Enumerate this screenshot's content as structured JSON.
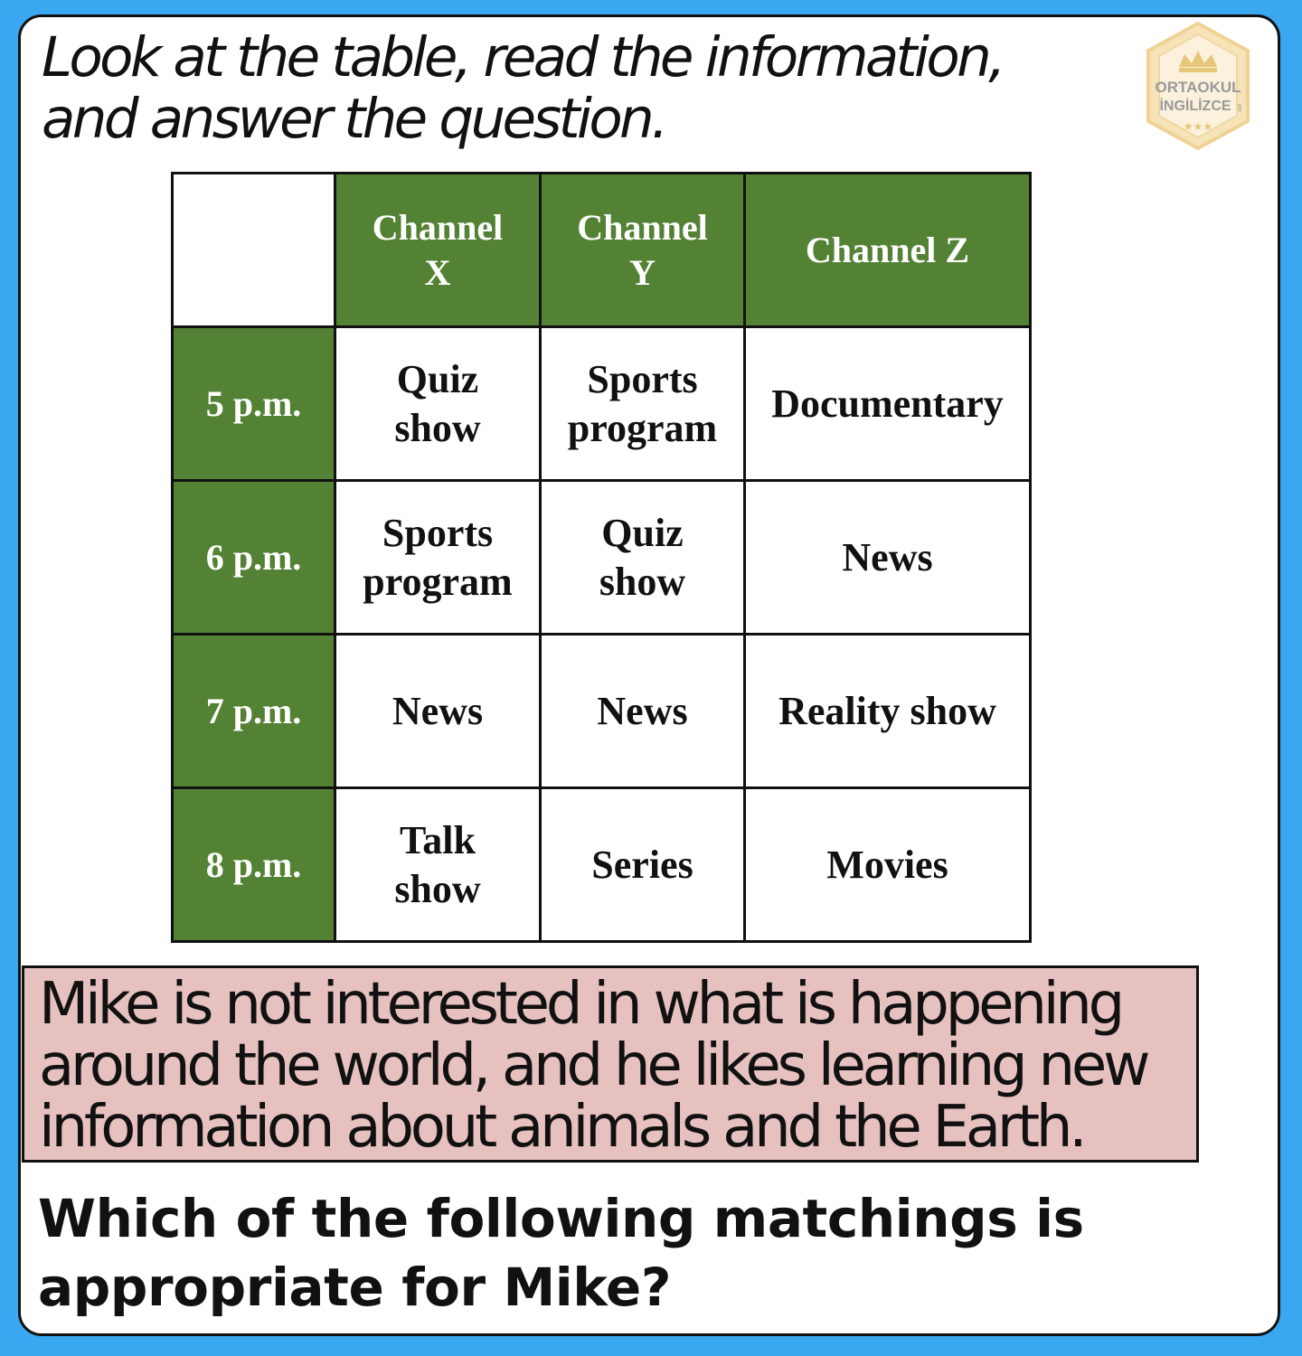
{
  "instruction": {
    "line1": "Look at the table, read the information,",
    "line2": "and answer the question."
  },
  "logo": {
    "line1": "ORTAOKUL",
    "line2": "İNGİLİZCE",
    "mark": ".net",
    "stars": "★★★"
  },
  "table": {
    "header": [
      "",
      "Channel X",
      "Channel Y",
      "Channel Z"
    ],
    "header_lines": [
      [
        "",
        ""
      ],
      [
        "Channel",
        "X"
      ],
      [
        "Channel",
        "Y"
      ],
      [
        "Channel Z",
        ""
      ]
    ],
    "rows": [
      {
        "time": "5 p.m.",
        "cells": [
          [
            "Quiz",
            "show"
          ],
          [
            "Sports",
            "program"
          ],
          [
            "Documentary",
            ""
          ]
        ]
      },
      {
        "time": "6 p.m.",
        "cells": [
          [
            "Sports",
            "program"
          ],
          [
            "Quiz",
            "show"
          ],
          [
            "News",
            ""
          ]
        ]
      },
      {
        "time": "7 p.m.",
        "cells": [
          [
            "News",
            ""
          ],
          [
            "News",
            ""
          ],
          [
            "Reality show",
            ""
          ]
        ]
      },
      {
        "time": "8 p.m.",
        "cells": [
          [
            "Talk",
            "show"
          ],
          [
            "Series",
            ""
          ],
          [
            "Movies",
            ""
          ]
        ]
      }
    ]
  },
  "info": {
    "line1": "Mike is not interested in what is happening",
    "line2": "around the world, and he likes learning new",
    "line3": "information about animals and the Earth."
  },
  "question": {
    "line1": "Which of the following matchings is",
    "line2": "appropriate for Mike?"
  },
  "colors": {
    "background": "#3aa7f1",
    "header_green": "#548235",
    "info_box": "#e6c1bf",
    "logo_gold": "#f3d9a0"
  }
}
